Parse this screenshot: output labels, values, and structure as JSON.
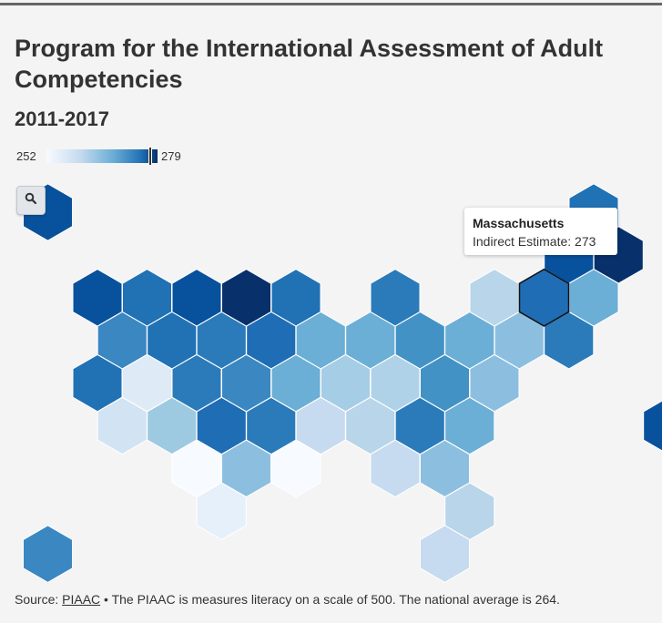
{
  "title": "Program for the International Assessment of Adult Competencies",
  "subtitle": "2011-2017",
  "legend": {
    "min": "252",
    "max": "279",
    "marker_value": 273
  },
  "zoom_icon": "search-icon",
  "tooltip": {
    "state": "Massachusetts",
    "label": "Indirect Estimate",
    "value": "273",
    "text": "Indirect Estimate: 273"
  },
  "source": {
    "prefix": "Source: ",
    "link": "PIAAC",
    "text": " • The PIAAC is measures literacy on a scale of 500. The national average is 264."
  },
  "colors": {
    "scale": [
      "#f7fbff",
      "#deebf7",
      "#c6dbef",
      "#9ecae1",
      "#6baed6",
      "#4292c6",
      "#2171b5",
      "#08519c",
      "#08306b"
    ]
  },
  "chart_data": {
    "type": "heatmap",
    "layout": "hexagon tile grid map",
    "scale_min": 252,
    "scale_max": 279,
    "highlighted": "Massachusetts",
    "cells": [
      {
        "row": 0,
        "col": 0,
        "color": "#08519c"
      },
      {
        "row": 0,
        "col": 11,
        "color": "#2171b5"
      },
      {
        "row": 1,
        "col": 10,
        "color": "#08519c"
      },
      {
        "row": 1,
        "col": 11,
        "color": "#08306b"
      },
      {
        "row": 2,
        "col": 1,
        "color": "#08519c"
      },
      {
        "row": 2,
        "col": 2,
        "color": "#2171b5"
      },
      {
        "row": 2,
        "col": 3,
        "color": "#08519c"
      },
      {
        "row": 2,
        "col": 4,
        "color": "#08306b"
      },
      {
        "row": 2,
        "col": 5,
        "color": "#2171b5"
      },
      {
        "row": 2,
        "col": 7,
        "color": "#2b7bba"
      },
      {
        "row": 2,
        "col": 9,
        "color": "#b8d5ea"
      },
      {
        "row": 2,
        "col": 10,
        "color": "#1f6db5",
        "highlight": true
      },
      {
        "row": 2,
        "col": 11,
        "color": "#6baed6"
      },
      {
        "row": 3,
        "col": 1,
        "color": "#3a87c2"
      },
      {
        "row": 3,
        "col": 2,
        "color": "#2171b5"
      },
      {
        "row": 3,
        "col": 3,
        "color": "#2b7bba"
      },
      {
        "row": 3,
        "col": 4,
        "color": "#1f6db5"
      },
      {
        "row": 3,
        "col": 5,
        "color": "#6baed6"
      },
      {
        "row": 3,
        "col": 6,
        "color": "#6baed6"
      },
      {
        "row": 3,
        "col": 7,
        "color": "#4292c6"
      },
      {
        "row": 3,
        "col": 8,
        "color": "#6baed6"
      },
      {
        "row": 3,
        "col": 9,
        "color": "#8cbfdf"
      },
      {
        "row": 3,
        "col": 10,
        "color": "#2b7bba"
      },
      {
        "row": 4,
        "col": 1,
        "color": "#2171b5"
      },
      {
        "row": 4,
        "col": 2,
        "color": "#deebf7"
      },
      {
        "row": 4,
        "col": 3,
        "color": "#2b7bba"
      },
      {
        "row": 4,
        "col": 4,
        "color": "#3a87c2"
      },
      {
        "row": 4,
        "col": 5,
        "color": "#6baed6"
      },
      {
        "row": 4,
        "col": 6,
        "color": "#a6cde6"
      },
      {
        "row": 4,
        "col": 7,
        "color": "#b0d2e8"
      },
      {
        "row": 4,
        "col": 8,
        "color": "#4292c6"
      },
      {
        "row": 4,
        "col": 9,
        "color": "#8cbfdf"
      },
      {
        "row": 5,
        "col": 1,
        "color": "#d2e3f3"
      },
      {
        "row": 5,
        "col": 2,
        "color": "#9ecae1"
      },
      {
        "row": 5,
        "col": 3,
        "color": "#1f6db5"
      },
      {
        "row": 5,
        "col": 4,
        "color": "#2b7bba"
      },
      {
        "row": 5,
        "col": 5,
        "color": "#c6dbef"
      },
      {
        "row": 5,
        "col": 6,
        "color": "#b8d5ea"
      },
      {
        "row": 5,
        "col": 7,
        "color": "#2b7bba"
      },
      {
        "row": 5,
        "col": 8,
        "color": "#6baed6"
      },
      {
        "row": 6,
        "col": 3,
        "color": "#f7fbff"
      },
      {
        "row": 6,
        "col": 4,
        "color": "#8cbfdf"
      },
      {
        "row": 6,
        "col": 5,
        "color": "#f7fbff"
      },
      {
        "row": 6,
        "col": 7,
        "color": "#c6dbef"
      },
      {
        "row": 6,
        "col": 8,
        "color": "#8cbfdf"
      },
      {
        "row": 7,
        "col": 3,
        "color": "#e6f0fa"
      },
      {
        "row": 7,
        "col": 8,
        "color": "#b8d5ea"
      },
      {
        "row": 8,
        "col": 8,
        "color": "#c6dbef"
      },
      {
        "row": 8,
        "col": 0,
        "color": "#3a87c2"
      },
      {
        "row": 5,
        "col": 12,
        "color": "#08519c"
      }
    ]
  }
}
